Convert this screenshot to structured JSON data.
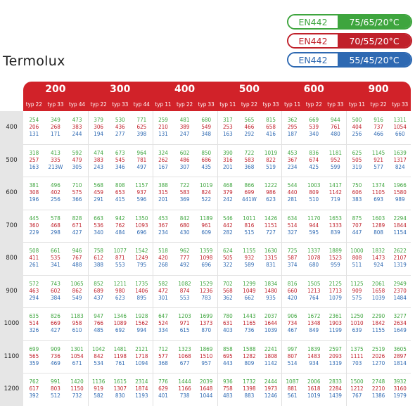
{
  "brand": "Termolux",
  "legend": [
    {
      "standard": "EN442",
      "temps": "75/65/20°C",
      "color": "#3ea53e"
    },
    {
      "standard": "EN442",
      "temps": "70/55/20°C",
      "color": "#c0202a"
    },
    {
      "standard": "EN442",
      "temps": "55/45/20°C",
      "color": "#2e69b2"
    }
  ],
  "groups": [
    {
      "width": "200",
      "types": [
        "typ 22",
        "typ 33",
        "typ 44"
      ]
    },
    {
      "width": "300",
      "types": [
        "typ 22",
        "typ 33",
        "typ 44"
      ]
    },
    {
      "width": "400",
      "types": [
        "typ 11",
        "typ 22",
        "typ 33"
      ]
    },
    {
      "width": "500",
      "types": [
        "typ 11",
        "typ 22",
        "typ 33"
      ]
    },
    {
      "width": "600",
      "types": [
        "typ 11",
        "typ 22",
        "typ 33"
      ]
    },
    {
      "width": "900",
      "types": [
        "typ 11",
        "typ 22",
        "typ 33"
      ]
    }
  ],
  "rows": [
    {
      "height": "400",
      "cells": [
        [
          "254",
          "206",
          "131"
        ],
        [
          "349",
          "268",
          "171"
        ],
        [
          "473",
          "383",
          "244"
        ],
        [
          "379",
          "306",
          "194"
        ],
        [
          "530",
          "436",
          "277"
        ],
        [
          "771",
          "625",
          "398"
        ],
        [
          "259",
          "210",
          "131"
        ],
        [
          "481",
          "389",
          "247"
        ],
        [
          "680",
          "549",
          "348"
        ],
        [
          "317",
          "253",
          "163"
        ],
        [
          "565",
          "466",
          "292"
        ],
        [
          "815",
          "658",
          "416"
        ],
        [
          "362",
          "295",
          "187"
        ],
        [
          "669",
          "539",
          "340"
        ],
        [
          "944",
          "761",
          "480"
        ],
        [
          "500",
          "404",
          "256"
        ],
        [
          "916",
          "737",
          "466"
        ],
        [
          "1311",
          "1054",
          "660"
        ]
      ]
    },
    {
      "height": "500",
      "cells": [
        [
          "318",
          "257",
          "163"
        ],
        [
          "413",
          "335",
          "213W"
        ],
        [
          "592",
          "479",
          "305"
        ],
        [
          "474",
          "383",
          "243"
        ],
        [
          "673",
          "545",
          "346"
        ],
        [
          "964",
          "781",
          "497"
        ],
        [
          "324",
          "262",
          "167"
        ],
        [
          "602",
          "486",
          "307"
        ],
        [
          "850",
          "686",
          "435"
        ],
        [
          "390",
          "316",
          "201"
        ],
        [
          "722",
          "583",
          "368"
        ],
        [
          "1019",
          "822",
          "519"
        ],
        [
          "453",
          "367",
          "234"
        ],
        [
          "836",
          "674",
          "425"
        ],
        [
          "1181",
          "952",
          "599"
        ],
        [
          "625",
          "505",
          "319"
        ],
        [
          "1145",
          "921",
          "577"
        ],
        [
          "1639",
          "1317",
          "824"
        ]
      ]
    },
    {
      "height": "600",
      "cells": [
        [
          "381",
          "308",
          "196"
        ],
        [
          "496",
          "402",
          "256"
        ],
        [
          "710",
          "575",
          "366"
        ],
        [
          "568",
          "459",
          "291"
        ],
        [
          "808",
          "653",
          "415"
        ],
        [
          "1157",
          "937",
          "596"
        ],
        [
          "388",
          "315",
          "201"
        ],
        [
          "722",
          "583",
          "369"
        ],
        [
          "1019",
          "824",
          "522"
        ],
        [
          "468",
          "379",
          "242"
        ],
        [
          "866",
          "699",
          "441W"
        ],
        [
          "1222",
          "986",
          "623"
        ],
        [
          "544",
          "440",
          "281"
        ],
        [
          "1003",
          "809",
          "510"
        ],
        [
          "1417",
          "1142",
          "719"
        ],
        [
          "750",
          "606",
          "383"
        ],
        [
          "1374",
          "1105",
          "693"
        ],
        [
          "1966",
          "1580",
          "989"
        ]
      ]
    },
    {
      "height": "700",
      "cells": [
        [
          "445",
          "360",
          "229"
        ],
        [
          "578",
          "468",
          "298"
        ],
        [
          "828",
          "671",
          "427"
        ],
        [
          "663",
          "536",
          "340"
        ],
        [
          "942",
          "762",
          "484"
        ],
        [
          "1350",
          "1093",
          "696"
        ],
        [
          "453",
          "367",
          "234"
        ],
        [
          "842",
          "680",
          "430"
        ],
        [
          "1189",
          "961",
          "609"
        ],
        [
          "546",
          "442",
          "282"
        ],
        [
          "1011",
          "816",
          "515"
        ],
        [
          "1426",
          "1151",
          "727"
        ],
        [
          "634",
          "514",
          "327"
        ],
        [
          "1170",
          "944",
          "595"
        ],
        [
          "1653",
          "1333",
          "839"
        ],
        [
          "875",
          "707",
          "447"
        ],
        [
          "1603",
          "1289",
          "808"
        ],
        [
          "2294",
          "1844",
          "1154"
        ]
      ]
    },
    {
      "height": "800",
      "cells": [
        [
          "508",
          "411",
          "261"
        ],
        [
          "661",
          "535",
          "341"
        ],
        [
          "946",
          "767",
          "488"
        ],
        [
          "758",
          "612",
          "388"
        ],
        [
          "1077",
          "871",
          "553"
        ],
        [
          "1542",
          "1249",
          "795"
        ],
        [
          "518",
          "420",
          "268"
        ],
        [
          "962",
          "777",
          "492"
        ],
        [
          "1359",
          "1098",
          "696"
        ],
        [
          "624",
          "505",
          "322"
        ],
        [
          "1155",
          "932",
          "589"
        ],
        [
          "1630",
          "1315",
          "831"
        ],
        [
          "725",
          "587",
          "374"
        ],
        [
          "1337",
          "1078",
          "680"
        ],
        [
          "1889",
          "1523",
          "959"
        ],
        [
          "1000",
          "808",
          "511"
        ],
        [
          "1832",
          "1473",
          "924"
        ],
        [
          "2622",
          "2107",
          "1319"
        ]
      ]
    },
    {
      "height": "900",
      "cells": [
        [
          "572",
          "463",
          "294"
        ],
        [
          "743",
          "602",
          "384"
        ],
        [
          "1065",
          "862",
          "549"
        ],
        [
          "852",
          "689",
          "437"
        ],
        [
          "1211",
          "980",
          "623"
        ],
        [
          "1735",
          "1406",
          "895"
        ],
        [
          "582",
          "472",
          "301"
        ],
        [
          "1082",
          "874",
          "553"
        ],
        [
          "1529",
          "1236",
          "783"
        ],
        [
          "702",
          "568",
          "362"
        ],
        [
          "1299",
          "1049",
          "662"
        ],
        [
          "1834",
          "1480",
          "935"
        ],
        [
          "816",
          "660",
          "420"
        ],
        [
          "1505",
          "1213",
          "764"
        ],
        [
          "2125",
          "1713",
          "1079"
        ],
        [
          "1125",
          "909",
          "575"
        ],
        [
          "2061",
          "1658",
          "1039"
        ],
        [
          "2949",
          "2370",
          "1484"
        ]
      ]
    },
    {
      "height": "1000",
      "cells": [
        [
          "635",
          "514",
          "326"
        ],
        [
          "826",
          "669",
          "427"
        ],
        [
          "1183",
          "958",
          "610"
        ],
        [
          "947",
          "766",
          "485"
        ],
        [
          "1346",
          "1089",
          "692"
        ],
        [
          "1928",
          "1562",
          "994"
        ],
        [
          "647",
          "524",
          "334"
        ],
        [
          "1203",
          "971",
          "615"
        ],
        [
          "1699",
          "1373",
          "870"
        ],
        [
          "780",
          "631",
          "403"
        ],
        [
          "1443",
          "1165",
          "736"
        ],
        [
          "2037",
          "1644",
          "1039"
        ],
        [
          "906",
          "734",
          "467"
        ],
        [
          "1672",
          "1348",
          "849"
        ],
        [
          "2361",
          "1903",
          "1199"
        ],
        [
          "1250",
          "1010",
          "639"
        ],
        [
          "2290",
          "1842",
          "1155"
        ],
        [
          "3277",
          "2634",
          "1649"
        ]
      ]
    },
    {
      "height": "1100",
      "cells": [
        [
          "699",
          "565",
          "359"
        ],
        [
          "909",
          "736",
          "469"
        ],
        [
          "1301",
          "1054",
          "671"
        ],
        [
          "1042",
          "842",
          "534"
        ],
        [
          "1481",
          "1198",
          "761"
        ],
        [
          "2121",
          "1718",
          "1094"
        ],
        [
          "712",
          "577",
          "368"
        ],
        [
          "1323",
          "1068",
          "677"
        ],
        [
          "1869",
          "1510",
          "957"
        ],
        [
          "858",
          "695",
          "443"
        ],
        [
          "1588",
          "1282",
          "809"
        ],
        [
          "2241",
          "1808",
          "1142"
        ],
        [
          "997",
          "807",
          "514"
        ],
        [
          "1839",
          "1483",
          "934"
        ],
        [
          "2597",
          "2093",
          "1319"
        ],
        [
          "1375",
          "1111",
          "703"
        ],
        [
          "2519",
          "2026",
          "1270"
        ],
        [
          "3605",
          "2897",
          "1814"
        ]
      ]
    },
    {
      "height": "1200",
      "cells": [
        [
          "762",
          "617",
          "392"
        ],
        [
          "991",
          "803",
          "512"
        ],
        [
          "1420",
          "1150",
          "732"
        ],
        [
          "1136",
          "919",
          "582"
        ],
        [
          "1615",
          "1307",
          "830"
        ],
        [
          "2314",
          "1874",
          "1193"
        ],
        [
          "776",
          "629",
          "401"
        ],
        [
          "1444",
          "1166",
          "738"
        ],
        [
          "2039",
          "1648",
          "1044"
        ],
        [
          "936",
          "758",
          "483"
        ],
        [
          "1732",
          "1398",
          "883"
        ],
        [
          "2444",
          "1973",
          "1246"
        ],
        [
          "1087",
          "881",
          "561"
        ],
        [
          "2006",
          "1618",
          "1019"
        ],
        [
          "2833",
          "2284",
          "1439"
        ],
        [
          "1500",
          "1212",
          "767"
        ],
        [
          "2748",
          "2210",
          "1386"
        ],
        [
          "3932",
          "3160",
          "1979"
        ]
      ]
    }
  ]
}
